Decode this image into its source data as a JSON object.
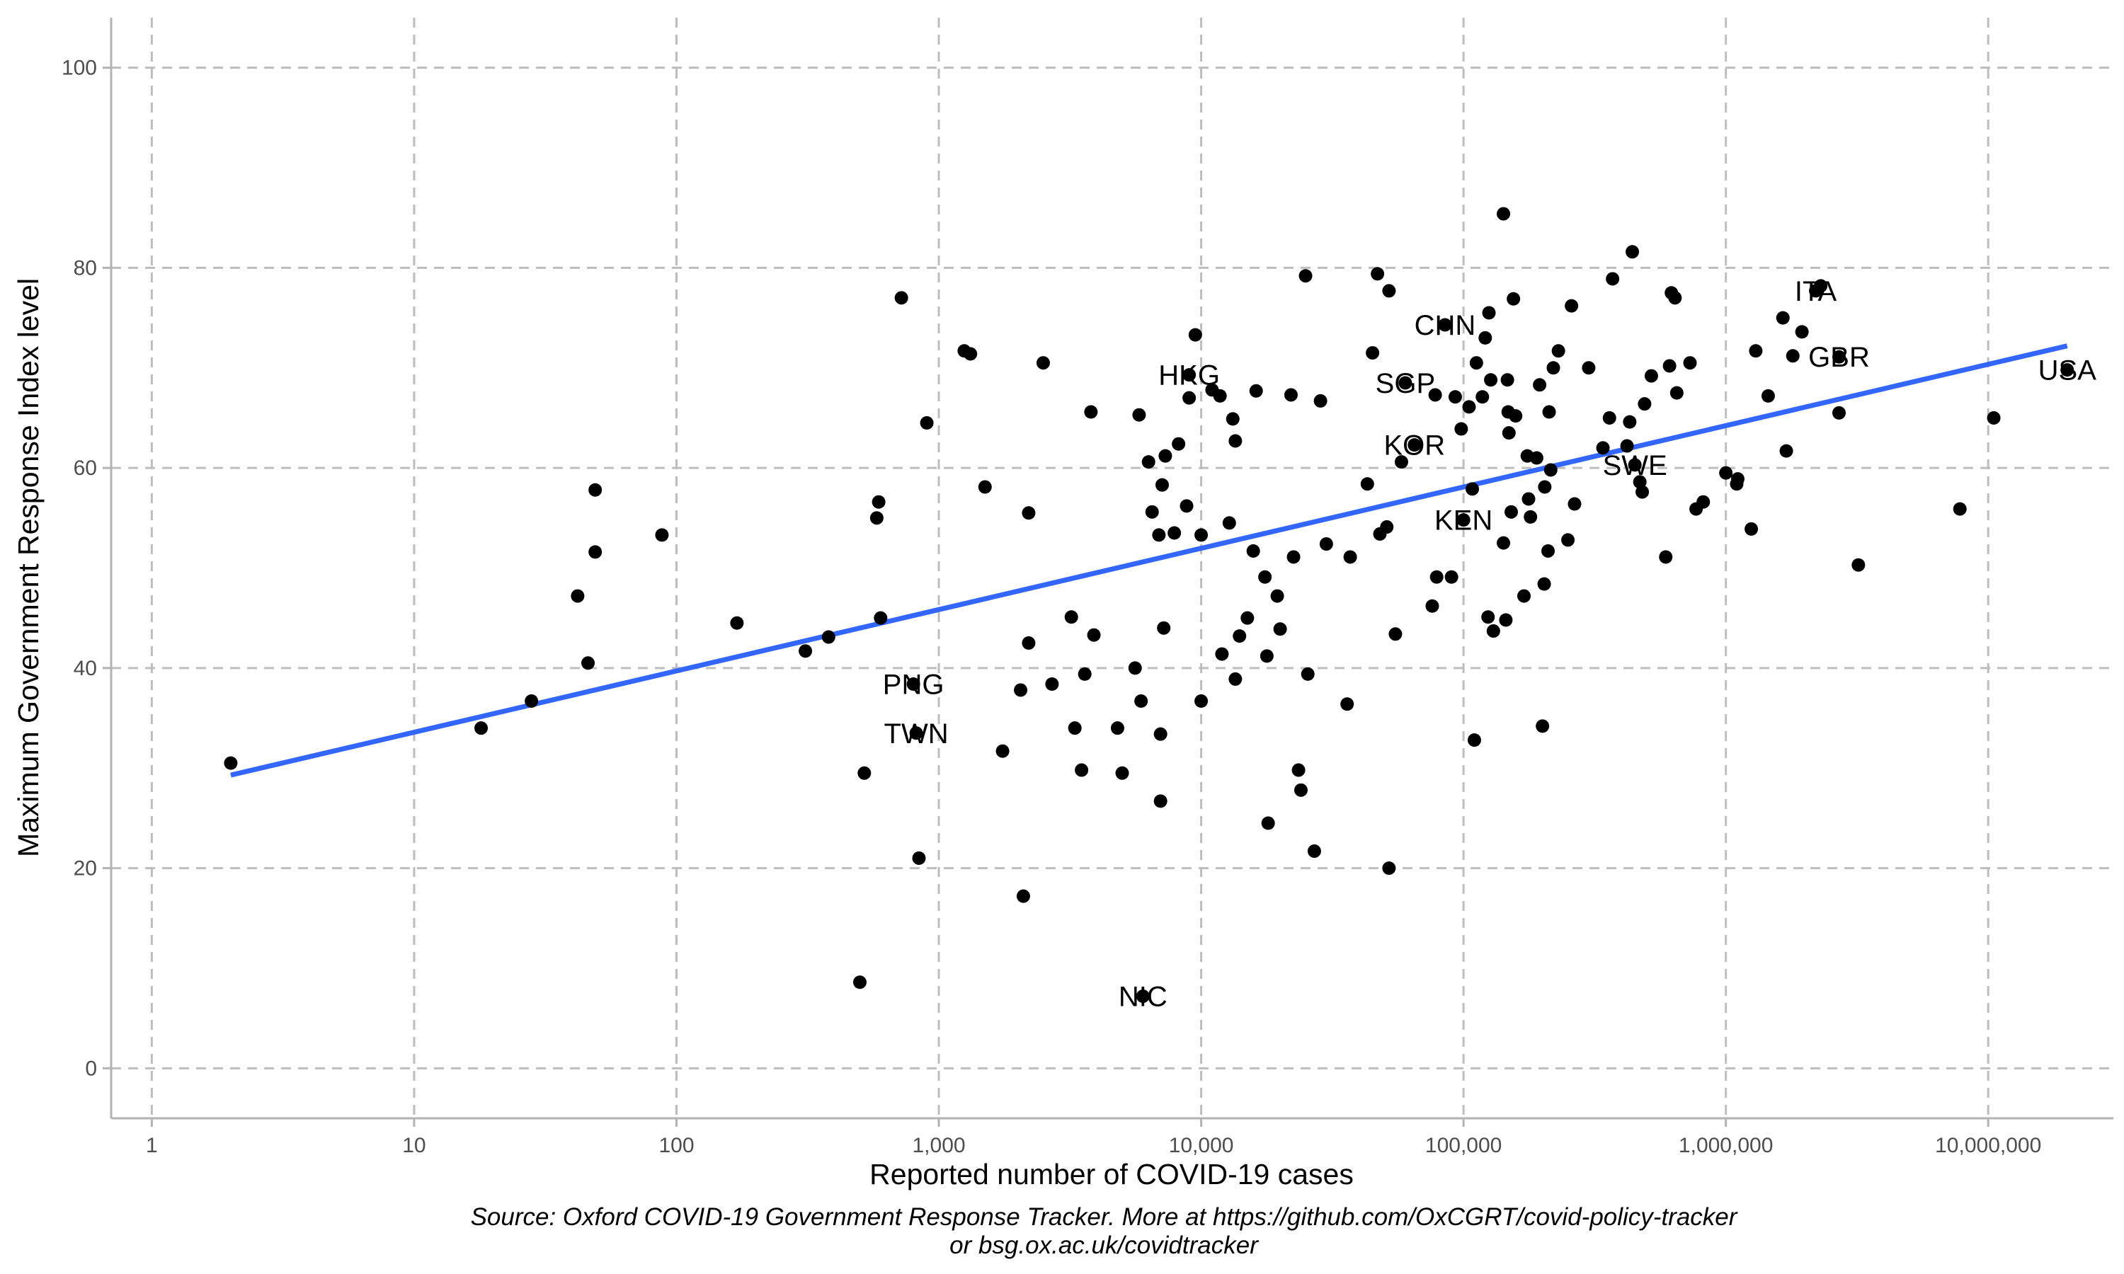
{
  "chart_data": {
    "type": "scatter",
    "title": "",
    "xlabel": "Reported number of COVID-19 cases",
    "ylabel": "Maximum Government Response Index level",
    "xscale": "log10",
    "xlim": [
      0.7,
      30000000
    ],
    "ylim": [
      -5,
      105
    ],
    "x_ticks": [
      1,
      10,
      100,
      1000,
      10000,
      100000,
      1000000,
      10000000
    ],
    "x_tick_labels": [
      "1",
      "10",
      "100",
      "1,000",
      "10,000",
      "100,000",
      "1,000,000",
      "10,000,000"
    ],
    "y_ticks": [
      0,
      20,
      40,
      60,
      80,
      100
    ],
    "y_tick_labels": [
      "0",
      "20",
      "40",
      "60",
      "80",
      "100"
    ],
    "grid": true,
    "colors": {
      "points": "#000000",
      "trend_line": "#3366ff",
      "grid": "#bdbdbd",
      "axis": "#b3b3b3"
    },
    "trend_line": {
      "x": [
        2,
        20000000
      ],
      "y": [
        29.3,
        72.2
      ]
    },
    "labels": [
      {
        "text": "ITA",
        "x": 2200000,
        "y": 77.7
      },
      {
        "text": "CHN",
        "x": 85000,
        "y": 74.3
      },
      {
        "text": "GBR",
        "x": 2700000,
        "y": 71.1
      },
      {
        "text": "USA",
        "x": 20000000,
        "y": 69.8
      },
      {
        "text": "HKG",
        "x": 9000,
        "y": 69.3
      },
      {
        "text": "SGP",
        "x": 60000,
        "y": 68.5
      },
      {
        "text": "KOR",
        "x": 65000,
        "y": 62.3
      },
      {
        "text": "SWE",
        "x": 450000,
        "y": 60.3
      },
      {
        "text": "KEN",
        "x": 100000,
        "y": 54.8
      },
      {
        "text": "PNG",
        "x": 800,
        "y": 38.4
      },
      {
        "text": "TWN",
        "x": 820,
        "y": 33.5
      },
      {
        "text": "NIC",
        "x": 6000,
        "y": 7.2
      }
    ],
    "points": [
      [
        2,
        30.5
      ],
      [
        18,
        34
      ],
      [
        28,
        36.7
      ],
      [
        42,
        47.2
      ],
      [
        46,
        40.5
      ],
      [
        49,
        57.8
      ],
      [
        49,
        51.6
      ],
      [
        88,
        53.3
      ],
      [
        170,
        44.5
      ],
      [
        310,
        41.7
      ],
      [
        380,
        43.1
      ],
      [
        500,
        8.6
      ],
      [
        520,
        29.5
      ],
      [
        580,
        55
      ],
      [
        590,
        56.6
      ],
      [
        600,
        45
      ],
      [
        720,
        77
      ],
      [
        800,
        38.4
      ],
      [
        820,
        33.5
      ],
      [
        840,
        21
      ],
      [
        900,
        64.5
      ],
      [
        1250,
        71.7
      ],
      [
        1320,
        71.4
      ],
      [
        1500,
        58.1
      ],
      [
        1750,
        31.7
      ],
      [
        2050,
        37.8
      ],
      [
        2100,
        17.2
      ],
      [
        2200,
        55.5
      ],
      [
        2200,
        42.5
      ],
      [
        2500,
        70.5
      ],
      [
        2700,
        38.4
      ],
      [
        3200,
        45.1
      ],
      [
        3300,
        34
      ],
      [
        3500,
        29.8
      ],
      [
        3600,
        39.4
      ],
      [
        3800,
        65.6
      ],
      [
        3900,
        43.3
      ],
      [
        4800,
        34
      ],
      [
        5000,
        29.5
      ],
      [
        5600,
        40
      ],
      [
        5800,
        65.3
      ],
      [
        5900,
        36.7
      ],
      [
        6000,
        7.2
      ],
      [
        6300,
        60.6
      ],
      [
        6500,
        55.6
      ],
      [
        6900,
        53.3
      ],
      [
        7000,
        26.7
      ],
      [
        7000,
        33.4
      ],
      [
        7100,
        58.3
      ],
      [
        7200,
        44
      ],
      [
        7300,
        61.2
      ],
      [
        7900,
        53.5
      ],
      [
        8200,
        62.4
      ],
      [
        8800,
        56.2
      ],
      [
        9000,
        67
      ],
      [
        9000,
        69.3
      ],
      [
        9500,
        73.3
      ],
      [
        10000,
        53.3
      ],
      [
        10000,
        36.7
      ],
      [
        11000,
        67.8
      ],
      [
        11800,
        67.2
      ],
      [
        12000,
        41.4
      ],
      [
        12800,
        54.5
      ],
      [
        13200,
        64.9
      ],
      [
        13500,
        62.7
      ],
      [
        13500,
        38.9
      ],
      [
        14000,
        43.2
      ],
      [
        15000,
        45
      ],
      [
        15800,
        51.7
      ],
      [
        16200,
        67.7
      ],
      [
        17500,
        49.1
      ],
      [
        17800,
        41.2
      ],
      [
        18000,
        24.5
      ],
      [
        19500,
        47.2
      ],
      [
        20000,
        43.9
      ],
      [
        22000,
        67.3
      ],
      [
        22500,
        51.1
      ],
      [
        23500,
        29.8
      ],
      [
        24000,
        27.8
      ],
      [
        25000,
        79.2
      ],
      [
        25500,
        39.4
      ],
      [
        27000,
        21.7
      ],
      [
        28500,
        66.7
      ],
      [
        30000,
        52.4
      ],
      [
        36000,
        36.4
      ],
      [
        37000,
        51.1
      ],
      [
        43000,
        58.4
      ],
      [
        45000,
        71.5
      ],
      [
        47000,
        79.4
      ],
      [
        48000,
        53.4
      ],
      [
        51000,
        54.1
      ],
      [
        52000,
        77.7
      ],
      [
        52000,
        20
      ],
      [
        55000,
        43.4
      ],
      [
        58000,
        60.6
      ],
      [
        60000,
        68.5
      ],
      [
        65000,
        62.3
      ],
      [
        76000,
        46.2
      ],
      [
        78000,
        67.3
      ],
      [
        79000,
        49.1
      ],
      [
        85000,
        74.3
      ],
      [
        90000,
        49.1
      ],
      [
        93000,
        67.1
      ],
      [
        98000,
        63.9
      ],
      [
        100000,
        54.8
      ],
      [
        105000,
        66.1
      ],
      [
        108000,
        57.9
      ],
      [
        110000,
        32.8
      ],
      [
        112000,
        70.5
      ],
      [
        118000,
        67.1
      ],
      [
        121000,
        73
      ],
      [
        124000,
        45.1
      ],
      [
        125000,
        75.5
      ],
      [
        127000,
        68.8
      ],
      [
        130000,
        43.7
      ],
      [
        142000,
        52.5
      ],
      [
        142000,
        85.4
      ],
      [
        145000,
        44.8
      ],
      [
        147000,
        68.8
      ],
      [
        148000,
        65.6
      ],
      [
        149000,
        63.5
      ],
      [
        152000,
        55.6
      ],
      [
        155000,
        76.9
      ],
      [
        158000,
        65.2
      ],
      [
        170000,
        47.2
      ],
      [
        175000,
        61.2
      ],
      [
        177000,
        56.9
      ],
      [
        180000,
        55.1
      ],
      [
        190000,
        61
      ],
      [
        195000,
        68.3
      ],
      [
        200000,
        34.2
      ],
      [
        203000,
        48.4
      ],
      [
        204000,
        58.1
      ],
      [
        210000,
        51.7
      ],
      [
        212000,
        65.6
      ],
      [
        215000,
        59.8
      ],
      [
        220000,
        70
      ],
      [
        230000,
        71.7
      ],
      [
        250000,
        52.8
      ],
      [
        258000,
        76.2
      ],
      [
        265000,
        56.4
      ],
      [
        300000,
        70
      ],
      [
        340000,
        62
      ],
      [
        360000,
        65
      ],
      [
        370000,
        78.9
      ],
      [
        420000,
        62.2
      ],
      [
        430000,
        64.6
      ],
      [
        440000,
        81.6
      ],
      [
        450000,
        60.3
      ],
      [
        470000,
        58.6
      ],
      [
        480000,
        57.6
      ],
      [
        490000,
        66.4
      ],
      [
        520000,
        69.2
      ],
      [
        590000,
        51.1
      ],
      [
        610000,
        70.2
      ],
      [
        620000,
        77.5
      ],
      [
        640000,
        77
      ],
      [
        650000,
        67.5
      ],
      [
        730000,
        70.5
      ],
      [
        770000,
        55.9
      ],
      [
        820000,
        56.6
      ],
      [
        1000000,
        59.5
      ],
      [
        1100000,
        58.4
      ],
      [
        1110000,
        58.9
      ],
      [
        1250000,
        53.9
      ],
      [
        1300000,
        71.7
      ],
      [
        1450000,
        67.2
      ],
      [
        1650000,
        75
      ],
      [
        1700000,
        61.7
      ],
      [
        1800000,
        71.2
      ],
      [
        1950000,
        73.6
      ],
      [
        2200000,
        77.7
      ],
      [
        2300000,
        78.2
      ],
      [
        2700000,
        71.1
      ],
      [
        2700000,
        65.5
      ],
      [
        3200000,
        50.3
      ],
      [
        7800000,
        55.9
      ],
      [
        10500000,
        65
      ],
      [
        20000000,
        69.8
      ]
    ]
  },
  "caption": {
    "line1": "Source: Oxford COVID-19 Government Response Tracker. More at https://github.com/OxCGRT/covid-policy-tracker",
    "line2": "or bsg.ox.ac.uk/covidtracker"
  }
}
